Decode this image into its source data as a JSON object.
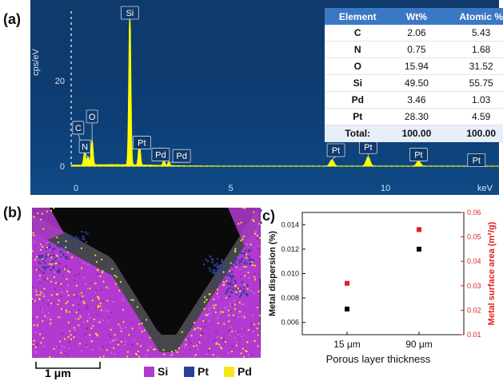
{
  "panels": {
    "a": "(a)",
    "b": "(b)",
    "c": "(c)"
  },
  "colors": {
    "spectrum": "#ffff00",
    "si": "#b23ad0",
    "pt": "#2b3f9e",
    "pd": "#f5e61a",
    "c_right_axis": "#e02020"
  },
  "eds_table": {
    "headers": [
      "Element",
      "Wt%",
      "Atomic %"
    ],
    "rows": [
      [
        "C",
        "2.06",
        "5.43"
      ],
      [
        "N",
        "0.75",
        "1.68"
      ],
      [
        "O",
        "15.94",
        "31.52"
      ],
      [
        "Si",
        "49.50",
        "55.75"
      ],
      [
        "Pd",
        "3.46",
        "1.03"
      ],
      [
        "Pt",
        "28.30",
        "4.59"
      ],
      [
        "Total:",
        "100.00",
        "100.00"
      ]
    ]
  },
  "map": {
    "scale_label": "1 μm",
    "legend": [
      "Si",
      "Pt",
      "Pd"
    ]
  },
  "chart_data": [
    {
      "type": "line",
      "panel": "a",
      "xlabel": "keV",
      "ylabel": "cps/eV",
      "xlim": [
        -0.3,
        20
      ],
      "ylim": [
        0,
        40
      ],
      "x_ticks": [
        0,
        5,
        10,
        15
      ],
      "y_ticks": [
        0,
        20
      ],
      "peaks": [
        {
          "label": "C",
          "x": 0.28,
          "y": 3
        },
        {
          "label": "N",
          "x": 0.39,
          "y": 2
        },
        {
          "label": "O",
          "x": 0.52,
          "y": 6
        },
        {
          "label": "Si",
          "x": 1.74,
          "y": 38.5
        },
        {
          "label": "Pt",
          "x": 2.05,
          "y": 5.5
        },
        {
          "label": "Pd",
          "x": 2.84,
          "y": 1.2
        },
        {
          "label": "Pd",
          "x": 3.0,
          "y": 0.9
        },
        {
          "label": "Pt",
          "x": 8.27,
          "y": 1.5
        },
        {
          "label": "Pt",
          "x": 9.44,
          "y": 2.2
        },
        {
          "label": "Pt",
          "x": 11.07,
          "y": 1.2
        },
        {
          "label": "Pt",
          "x": 12.94,
          "y": 0.3
        }
      ]
    },
    {
      "type": "scatter",
      "panel": "c",
      "xlabel": "Porous layer thickness",
      "categories": [
        "15 μm",
        "90 μm"
      ],
      "ylabel_left": "Metal dispersion (%)",
      "ylabel_right": "Metal surface area (m²/g)",
      "ylim_left": [
        0.005,
        0.015
      ],
      "ylim_right": [
        0.01,
        0.06
      ],
      "y_ticks_left": [
        "0.006",
        "0.008",
        "0.010",
        "0.012",
        "0.014"
      ],
      "y_ticks_right": [
        "0.01",
        "0.02",
        "0.03",
        "0.04",
        "0.05",
        "0.06"
      ],
      "series": [
        {
          "axis": "left",
          "color": "#000000",
          "values": [
            0.0071,
            0.012
          ]
        },
        {
          "axis": "right",
          "color": "#e02020",
          "values": [
            0.031,
            0.053
          ]
        }
      ]
    }
  ]
}
